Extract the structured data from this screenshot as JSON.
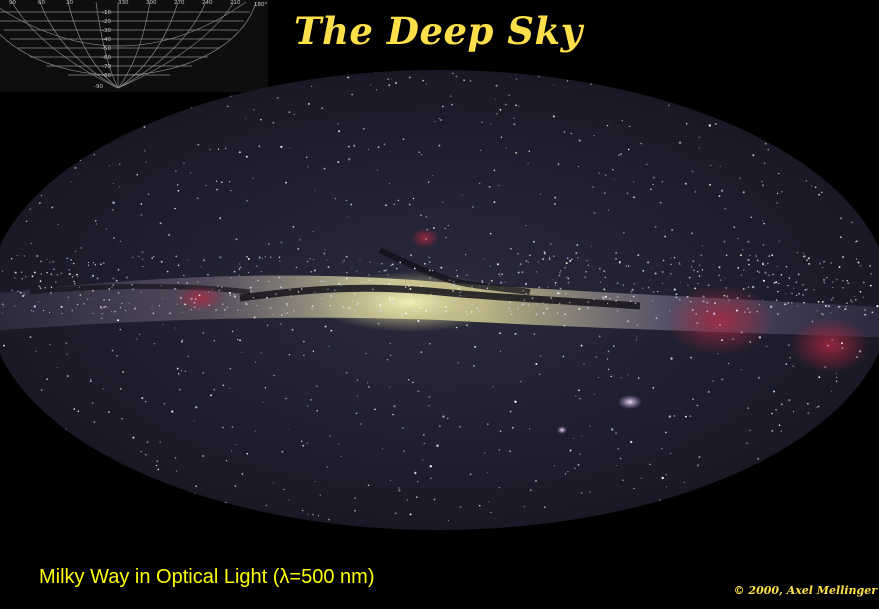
{
  "title": "The Deep Sky",
  "caption": "Milky Way in Optical Light (λ=500 nm)",
  "copyright": "© 2000,  Axel Mellinger",
  "grid_inset": {
    "longitude_labels": [
      "90",
      "60",
      "30",
      "330",
      "300",
      "270",
      "240",
      "210",
      "180°"
    ],
    "latitude_labels": [
      "-10",
      "-20",
      "-30",
      "-40",
      "-50",
      "-60",
      "-70",
      "-80",
      "-90"
    ]
  },
  "colors": {
    "title": "#ffe04a",
    "caption": "#ffff00",
    "background": "#000000"
  }
}
